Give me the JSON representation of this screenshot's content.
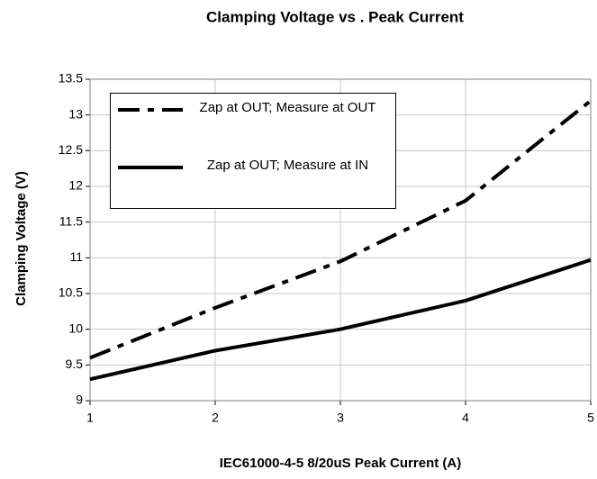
{
  "chart_data": {
    "type": "line",
    "title": "Clamping Voltage vs . Peak Current",
    "xlabel": "IEC61000-4-5 8/20uS Peak Current (A)",
    "ylabel": "Clamping Voltage (V)",
    "x": [
      1,
      2,
      3,
      4,
      5
    ],
    "series": [
      {
        "name": "Zap at OUT; Measure at OUT",
        "color": "#000000",
        "dash": "dashdot",
        "values": [
          9.6,
          10.3,
          10.95,
          11.8,
          13.2
        ]
      },
      {
        "name": "Zap at OUT; Measure at IN",
        "color": "#000000",
        "dash": "solid",
        "values": [
          9.3,
          9.7,
          10.0,
          10.4,
          10.97
        ]
      }
    ],
    "xlim": [
      1,
      5
    ],
    "xticks": [
      1,
      2,
      3,
      4,
      5
    ],
    "ylim": [
      9,
      13.5
    ],
    "yticks": [
      9,
      9.5,
      10,
      10.5,
      11,
      11.5,
      12,
      12.5,
      13,
      13.5
    ],
    "grid": true
  }
}
